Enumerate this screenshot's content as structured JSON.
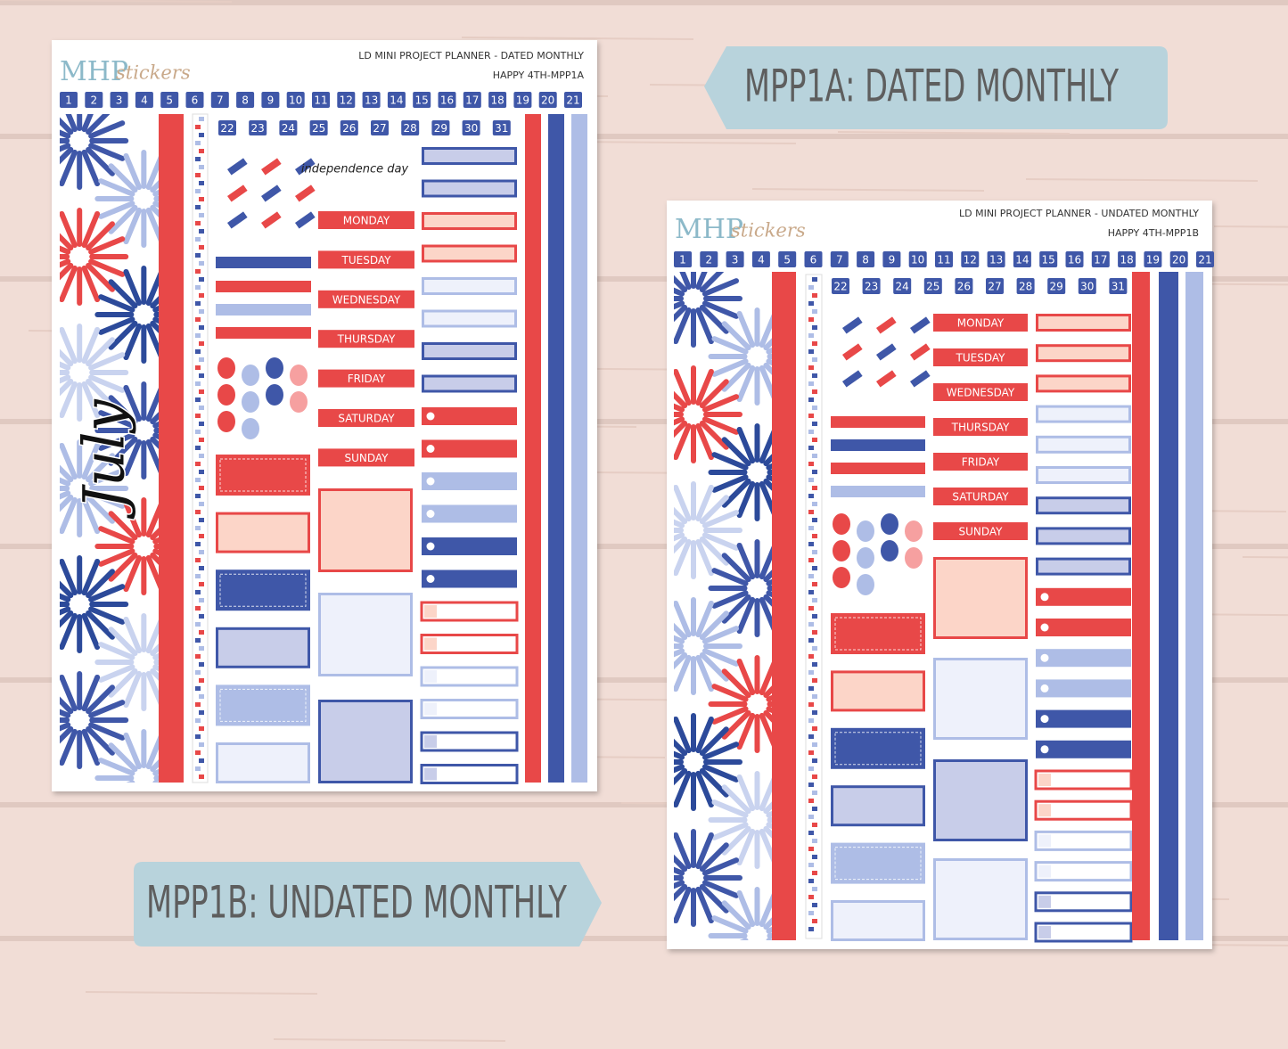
{
  "tags": {
    "sheet_a": "MPP1A: DATED MONTHLY",
    "sheet_b": "MPP1B: UNDATED MONTHLY"
  },
  "sheet_a": {
    "logo": {
      "brand": "MHP",
      "word": "stickers"
    },
    "title": "LD MINI PROJECT PLANNER - DATED MONTHLY",
    "code": "HAPPY 4TH-MPP1A",
    "dates": [
      1,
      2,
      3,
      4,
      5,
      6,
      7,
      8,
      9,
      10,
      11,
      12,
      13,
      14,
      15,
      16,
      17,
      18,
      19,
      20,
      21,
      22,
      23,
      24,
      25,
      26,
      27,
      28,
      29,
      30,
      31
    ],
    "heading": "independence day",
    "month": "July",
    "weekdays": [
      "MONDAY",
      "TUESDAY",
      "WEDNESDAY",
      "THURSDAY",
      "FRIDAY",
      "SATURDAY",
      "SUNDAY"
    ]
  },
  "sheet_b": {
    "logo": {
      "brand": "MHP",
      "word": "stickers"
    },
    "title": "LD MINI PROJECT PLANNER - UNDATED MONTHLY",
    "code": "HAPPY 4TH-MPP1B",
    "dates": [
      1,
      2,
      3,
      4,
      5,
      6,
      7,
      8,
      9,
      10,
      11,
      12,
      13,
      14,
      15,
      16,
      17,
      18,
      19,
      20,
      21,
      22,
      23,
      24,
      25,
      26,
      27,
      28,
      29,
      30,
      31
    ],
    "weekdays": [
      "MONDAY",
      "TUESDAY",
      "WEDNESDAY",
      "THURSDAY",
      "FRIDAY",
      "SATURDAY",
      "SUNDAY"
    ]
  }
}
